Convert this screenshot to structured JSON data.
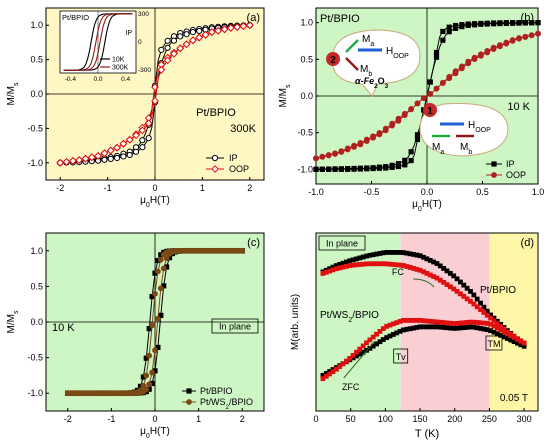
{
  "figure": {
    "background_colors": {
      "panel_a": "#fff7c4",
      "panel_b": "#cdf6c4",
      "panel_c": "#cdf6c4",
      "panel_d_left": "#cdf6c4",
      "panel_d_mid": "#f9cfd3",
      "panel_d_right": "#fff7a8"
    },
    "series_colors": {
      "black": "#000000",
      "red": "#e01010",
      "dark_red": "#8b1a1a",
      "brown": "#7a4a14",
      "green_arrow": "#22aa44",
      "blue_arrow": "#1f5fd6"
    }
  },
  "chart_data": [
    {
      "panel": "a",
      "type": "line",
      "panel_label": "(a)",
      "annotation": "Pt/BPIO",
      "temperature_label": "300K",
      "xlabel": "μ0H(T)",
      "ylabel": "M/Ms",
      "xlim": [
        -2.3,
        2.3
      ],
      "ylim": [
        -1.25,
        1.25
      ],
      "xticks": [
        "-2",
        "-1",
        "0",
        "1",
        "2"
      ],
      "yticks": [
        "-1.0",
        "-0.5",
        "0.0",
        "0.5",
        "1.0"
      ],
      "legend_position": "bottom-right",
      "series": [
        {
          "name": "IP",
          "color": "#000000",
          "marker": "open-circle",
          "x": [
            -2.0,
            -1.6,
            -1.2,
            -0.8,
            -0.5,
            -0.3,
            -0.15,
            -0.05,
            0.0,
            0.05,
            0.15,
            0.3,
            0.5,
            0.8,
            1.2,
            1.6,
            2.0
          ],
          "up": [
            -1.0,
            -0.98,
            -0.95,
            -0.9,
            -0.83,
            -0.72,
            -0.5,
            -0.18,
            0.12,
            0.45,
            0.68,
            0.8,
            0.88,
            0.93,
            0.97,
            0.99,
            1.0
          ],
          "down": [
            -1.0,
            -0.99,
            -0.97,
            -0.93,
            -0.88,
            -0.8,
            -0.68,
            -0.45,
            -0.12,
            0.18,
            0.5,
            0.72,
            0.83,
            0.9,
            0.95,
            0.98,
            1.0
          ]
        },
        {
          "name": "OOP",
          "color": "#e01010",
          "marker": "open-diamond",
          "x": [
            -2.0,
            -1.6,
            -1.2,
            -0.8,
            -0.5,
            -0.3,
            -0.15,
            -0.05,
            0.0,
            0.05,
            0.15,
            0.3,
            0.5,
            0.8,
            1.2,
            1.6,
            2.0
          ],
          "up": [
            -1.0,
            -0.96,
            -0.9,
            -0.78,
            -0.65,
            -0.52,
            -0.38,
            -0.2,
            0.1,
            0.3,
            0.45,
            0.55,
            0.65,
            0.78,
            0.9,
            0.96,
            1.0
          ],
          "down": [
            -1.0,
            -0.96,
            -0.9,
            -0.78,
            -0.65,
            -0.55,
            -0.45,
            -0.3,
            -0.1,
            0.2,
            0.38,
            0.52,
            0.65,
            0.78,
            0.9,
            0.96,
            1.0
          ]
        }
      ],
      "inset": {
        "annotation": "Pt/BPIO",
        "direction_label": "IP",
        "xlim": [
          -0.55,
          0.55
        ],
        "ylim": [
          -330,
          330
        ],
        "xticks": [
          "-0.4",
          "0.0",
          "0.4"
        ],
        "yticks": [
          "-300",
          "0",
          "300"
        ],
        "series": [
          {
            "name": "10K",
            "color": "#000000",
            "coercive": 0.1
          },
          {
            "name": "300K",
            "color": "#8b1a1a",
            "coercive": 0.03
          }
        ]
      }
    },
    {
      "panel": "b",
      "type": "line",
      "panel_label": "(b)",
      "annotation": "Pt/BPIO",
      "temperature_label": "10 K",
      "xlabel": "μ0H(T)",
      "ylabel": "M/Ms",
      "xlim": [
        -1.0,
        1.0
      ],
      "ylim": [
        -1.2,
        1.2
      ],
      "xticks": [
        "-1.0",
        "-0.5",
        "0.0",
        "0.5",
        "1.0"
      ],
      "yticks": [
        "-1.0",
        "-0.5",
        "0.0",
        "0.5",
        "1.0"
      ],
      "legend_position": "bottom-right",
      "series": [
        {
          "name": "IP",
          "color": "#000000",
          "marker": "filled-square",
          "x": [
            -1.0,
            -0.7,
            -0.5,
            -0.35,
            -0.25,
            -0.18,
            -0.12,
            -0.06,
            0.0,
            0.06,
            0.12,
            0.18,
            0.25,
            0.35,
            0.5,
            0.7,
            1.0
          ],
          "up": [
            -1.0,
            -0.99,
            -0.98,
            -0.96,
            -0.92,
            -0.86,
            -0.7,
            -0.4,
            0.0,
            0.4,
            0.85,
            0.93,
            0.96,
            0.98,
            0.99,
            1.0,
            1.0
          ],
          "down": [
            -1.0,
            -1.0,
            -0.99,
            -0.98,
            -0.96,
            -0.93,
            -0.85,
            -0.4,
            0.0,
            0.4,
            0.7,
            0.86,
            0.92,
            0.96,
            0.98,
            0.99,
            1.0
          ]
        },
        {
          "name": "OOP",
          "color": "#b02020",
          "marker": "filled-circle",
          "x": [
            -1.0,
            -0.8,
            -0.6,
            -0.4,
            -0.25,
            -0.12,
            -0.05,
            0.0,
            0.05,
            0.12,
            0.25,
            0.4,
            0.6,
            0.8,
            1.0
          ],
          "up": [
            -0.85,
            -0.78,
            -0.66,
            -0.5,
            -0.33,
            -0.15,
            -0.05,
            0.0,
            0.05,
            0.15,
            0.3,
            0.48,
            0.64,
            0.77,
            0.85
          ],
          "down": [
            -0.85,
            -0.77,
            -0.64,
            -0.48,
            -0.3,
            -0.15,
            -0.05,
            0.0,
            0.05,
            0.15,
            0.33,
            0.5,
            0.66,
            0.78,
            0.85
          ]
        }
      ],
      "callouts": [
        {
          "number": "2",
          "labels": [
            "Ma",
            "HOOP",
            "Mb",
            "α-Fe2O3"
          ]
        },
        {
          "number": "1",
          "labels": [
            "HOOP",
            "Ma",
            "Mb"
          ]
        }
      ]
    },
    {
      "panel": "c",
      "type": "line",
      "panel_label": "(c)",
      "temperature_label": "10 K",
      "direction_label": "In plane",
      "xlabel": "μ0H(T)",
      "ylabel": "M/Ms",
      "xlim": [
        -2.5,
        2.5
      ],
      "ylim": [
        -1.25,
        1.25
      ],
      "xticks": [
        "-2",
        "-1",
        "0",
        "1",
        "2"
      ],
      "yticks": [
        "-1.0",
        "-0.5",
        "0.0",
        "0.5",
        "1.0"
      ],
      "legend_position": "bottom-right",
      "series": [
        {
          "name": "Pt/BPIO",
          "color": "#000000",
          "marker": "filled-square",
          "coercive": 0.12
        },
        {
          "name": "Pt/WS2/BPIO",
          "color": "#7a4a14",
          "marker": "filled-circle",
          "coercive": 0.06
        }
      ]
    },
    {
      "panel": "d",
      "type": "line",
      "panel_label": "(d)",
      "direction_label": "In plane",
      "field_label": "0.05 T",
      "xlabel": "T (K)",
      "ylabel": "M(arb. units)",
      "xlim": [
        0,
        320
      ],
      "xticks": [
        "0",
        "50",
        "100",
        "150",
        "200",
        "250",
        "300"
      ],
      "regions_K": [
        [
          0,
          122
        ],
        [
          122,
          250
        ],
        [
          250,
          320
        ]
      ],
      "labels": {
        "fc": "FC",
        "zfc": "ZFC",
        "tv": "Tv",
        "tm": "TM",
        "pt_bpio": "Pt/BPIO",
        "pt_ws2_bpio": "Pt/WS2/BPIO"
      },
      "series": [
        {
          "name": "Pt/BPIO FC",
          "color": "#000000",
          "x": [
            10,
            30,
            50,
            75,
            100,
            125,
            150,
            175,
            200,
            225,
            250,
            275,
            300
          ],
          "y": [
            0.86,
            0.9,
            0.93,
            0.96,
            0.98,
            0.98,
            0.96,
            0.91,
            0.83,
            0.73,
            0.6,
            0.5,
            0.41
          ]
        },
        {
          "name": "Pt/BPIO ZFC",
          "color": "#000000",
          "x": [
            10,
            30,
            50,
            75,
            100,
            125,
            150,
            175,
            200,
            225,
            250,
            275,
            300
          ],
          "y": [
            0.22,
            0.27,
            0.32,
            0.38,
            0.45,
            0.5,
            0.52,
            0.52,
            0.51,
            0.52,
            0.5,
            0.45,
            0.4
          ]
        },
        {
          "name": "Pt/WS2/BPIO FC",
          "color": "#e01010",
          "x": [
            10,
            30,
            50,
            75,
            100,
            125,
            150,
            175,
            200,
            225,
            250,
            275,
            300
          ],
          "y": [
            0.85,
            0.88,
            0.9,
            0.91,
            0.91,
            0.9,
            0.87,
            0.82,
            0.75,
            0.67,
            0.58,
            0.49,
            0.42
          ]
        },
        {
          "name": "Pt/WS2/BPIO ZFC",
          "color": "#e01010",
          "x": [
            10,
            30,
            50,
            75,
            100,
            125,
            150,
            175,
            200,
            225,
            250,
            275,
            300
          ],
          "y": [
            0.2,
            0.26,
            0.33,
            0.43,
            0.52,
            0.56,
            0.56,
            0.55,
            0.54,
            0.55,
            0.54,
            0.48,
            0.42
          ]
        }
      ]
    }
  ]
}
